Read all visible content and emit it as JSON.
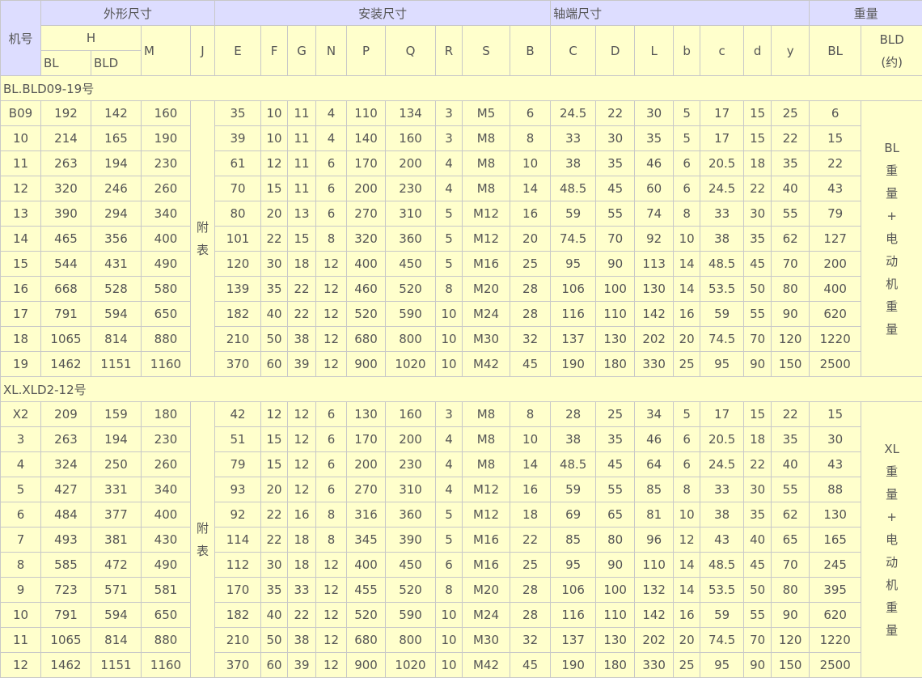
{
  "colors": {
    "header_bg": "#ddddff",
    "body_bg": "#ffffcc",
    "border": "#c8c8c8",
    "text": "#555555"
  },
  "header": {
    "machine_no": "机号",
    "outer_dims": "外形尺寸",
    "install_dims": "安装尺寸",
    "shaft_dims": "轴端尺寸",
    "weight": "重量",
    "H": "H",
    "H_BL": "BL",
    "H_BLD": "BLD",
    "M": "M",
    "J": "J",
    "cols": [
      "E",
      "F",
      "G",
      "N",
      "P",
      "Q",
      "R",
      "S",
      "B",
      "C",
      "D",
      "L",
      "b",
      "c",
      "d",
      "y"
    ],
    "weight_BL": "BL",
    "weight_BLD": "BLD",
    "weight_BLD_note": "(约)"
  },
  "sections": [
    {
      "title": "BL.BLD09-19号",
      "J_note": [
        "附",
        "表"
      ],
      "weight_note": [
        "BL",
        "重",
        "量",
        "+",
        "电",
        "动",
        "机",
        "重",
        "量"
      ],
      "rows": [
        [
          "B09",
          "192",
          "142",
          "160",
          "35",
          "10",
          "11",
          "4",
          "110",
          "134",
          "3",
          "M5",
          "6",
          "24.5",
          "22",
          "30",
          "5",
          "17",
          "15",
          "25",
          "6"
        ],
        [
          "10",
          "214",
          "165",
          "190",
          "39",
          "10",
          "11",
          "4",
          "140",
          "160",
          "3",
          "M8",
          "8",
          "33",
          "30",
          "35",
          "5",
          "17",
          "15",
          "22",
          "15"
        ],
        [
          "11",
          "263",
          "194",
          "230",
          "61",
          "12",
          "11",
          "6",
          "170",
          "200",
          "4",
          "M8",
          "10",
          "38",
          "35",
          "46",
          "6",
          "20.5",
          "18",
          "35",
          "22"
        ],
        [
          "12",
          "320",
          "246",
          "260",
          "70",
          "15",
          "11",
          "6",
          "200",
          "230",
          "4",
          "M8",
          "14",
          "48.5",
          "45",
          "60",
          "6",
          "24.5",
          "22",
          "40",
          "43"
        ],
        [
          "13",
          "390",
          "294",
          "340",
          "80",
          "20",
          "13",
          "6",
          "270",
          "310",
          "5",
          "M12",
          "16",
          "59",
          "55",
          "74",
          "8",
          "33",
          "30",
          "55",
          "79"
        ],
        [
          "14",
          "465",
          "356",
          "400",
          "101",
          "22",
          "15",
          "8",
          "320",
          "360",
          "5",
          "M12",
          "20",
          "74.5",
          "70",
          "92",
          "10",
          "38",
          "35",
          "62",
          "127"
        ],
        [
          "15",
          "544",
          "431",
          "490",
          "120",
          "30",
          "18",
          "12",
          "400",
          "450",
          "5",
          "M16",
          "25",
          "95",
          "90",
          "113",
          "14",
          "48.5",
          "45",
          "70",
          "200"
        ],
        [
          "16",
          "668",
          "528",
          "580",
          "139",
          "35",
          "22",
          "12",
          "460",
          "520",
          "8",
          "M20",
          "28",
          "106",
          "100",
          "130",
          "14",
          "53.5",
          "50",
          "80",
          "400"
        ],
        [
          "17",
          "791",
          "594",
          "650",
          "182",
          "40",
          "22",
          "12",
          "520",
          "590",
          "10",
          "M24",
          "28",
          "116",
          "110",
          "142",
          "16",
          "59",
          "55",
          "90",
          "620"
        ],
        [
          "18",
          "1065",
          "814",
          "880",
          "210",
          "50",
          "38",
          "12",
          "680",
          "800",
          "10",
          "M30",
          "32",
          "137",
          "130",
          "202",
          "20",
          "74.5",
          "70",
          "120",
          "1220"
        ],
        [
          "19",
          "1462",
          "1151",
          "1160",
          "370",
          "60",
          "39",
          "12",
          "900",
          "1020",
          "10",
          "M42",
          "45",
          "190",
          "180",
          "330",
          "25",
          "95",
          "90",
          "150",
          "2500"
        ]
      ]
    },
    {
      "title": "XL.XLD2-12号",
      "J_note": [
        "附",
        "表"
      ],
      "weight_note": [
        "XL",
        "重",
        "量",
        "+",
        "电",
        "动",
        "机",
        "重",
        "量"
      ],
      "rows": [
        [
          "X2",
          "209",
          "159",
          "180",
          "42",
          "12",
          "12",
          "6",
          "130",
          "160",
          "3",
          "M8",
          "8",
          "28",
          "25",
          "34",
          "5",
          "17",
          "15",
          "22",
          "15"
        ],
        [
          "3",
          "263",
          "194",
          "230",
          "51",
          "15",
          "12",
          "6",
          "170",
          "200",
          "4",
          "M8",
          "10",
          "38",
          "35",
          "46",
          "6",
          "20.5",
          "18",
          "35",
          "30"
        ],
        [
          "4",
          "324",
          "250",
          "260",
          "79",
          "15",
          "12",
          "6",
          "200",
          "230",
          "4",
          "M8",
          "14",
          "48.5",
          "45",
          "64",
          "6",
          "24.5",
          "22",
          "40",
          "43"
        ],
        [
          "5",
          "427",
          "331",
          "340",
          "93",
          "20",
          "12",
          "6",
          "270",
          "310",
          "4",
          "M12",
          "16",
          "59",
          "55",
          "85",
          "8",
          "33",
          "30",
          "55",
          "88"
        ],
        [
          "6",
          "484",
          "377",
          "400",
          "92",
          "22",
          "16",
          "8",
          "316",
          "360",
          "5",
          "M12",
          "18",
          "69",
          "65",
          "81",
          "10",
          "38",
          "35",
          "62",
          "130"
        ],
        [
          "7",
          "493",
          "381",
          "430",
          "114",
          "22",
          "18",
          "8",
          "345",
          "390",
          "5",
          "M16",
          "22",
          "85",
          "80",
          "96",
          "12",
          "43",
          "40",
          "65",
          "165"
        ],
        [
          "8",
          "585",
          "472",
          "490",
          "112",
          "30",
          "18",
          "12",
          "400",
          "450",
          "6",
          "M16",
          "25",
          "95",
          "90",
          "110",
          "14",
          "48.5",
          "45",
          "70",
          "245"
        ],
        [
          "9",
          "723",
          "571",
          "581",
          "170",
          "35",
          "33",
          "12",
          "455",
          "520",
          "8",
          "M20",
          "28",
          "106",
          "100",
          "132",
          "14",
          "53.5",
          "50",
          "80",
          "395"
        ],
        [
          "10",
          "791",
          "594",
          "650",
          "182",
          "40",
          "22",
          "12",
          "520",
          "590",
          "10",
          "M24",
          "28",
          "116",
          "110",
          "142",
          "16",
          "59",
          "55",
          "90",
          "620"
        ],
        [
          "11",
          "1065",
          "814",
          "880",
          "210",
          "50",
          "38",
          "12",
          "680",
          "800",
          "10",
          "M30",
          "32",
          "137",
          "130",
          "202",
          "20",
          "74.5",
          "70",
          "120",
          "1220"
        ],
        [
          "12",
          "1462",
          "1151",
          "1160",
          "370",
          "60",
          "39",
          "12",
          "900",
          "1020",
          "10",
          "M42",
          "45",
          "190",
          "180",
          "330",
          "25",
          "95",
          "90",
          "150",
          "2500"
        ]
      ]
    }
  ]
}
